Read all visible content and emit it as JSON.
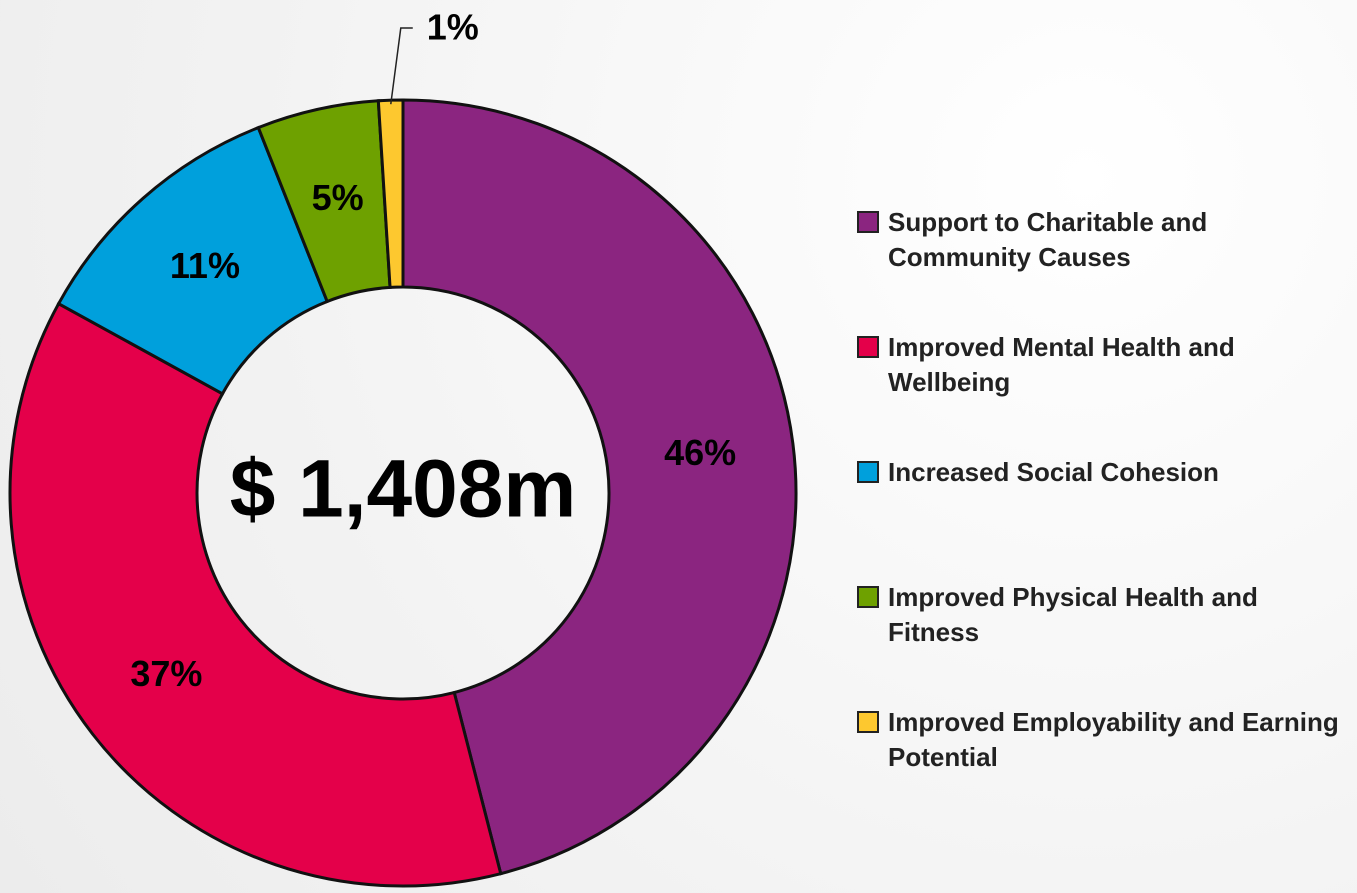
{
  "chart_data": {
    "type": "pie",
    "categories": [
      "Support to Charitable and Community Causes",
      "Improved Mental Health and Wellbeing",
      "Increased Social Cohesion",
      "Improved Physical Health and Fitness",
      "Improved Employability and Earning Potential"
    ],
    "values": [
      46,
      37,
      11,
      5,
      1
    ],
    "value_labels": [
      "46%",
      "37%",
      "11%",
      "5%",
      "1%"
    ],
    "colors": [
      "#8b2580",
      "#e4004a",
      "#00a0dc",
      "#6ea100",
      "#fdc82f"
    ],
    "center_label": "$ 1,408m"
  }
}
